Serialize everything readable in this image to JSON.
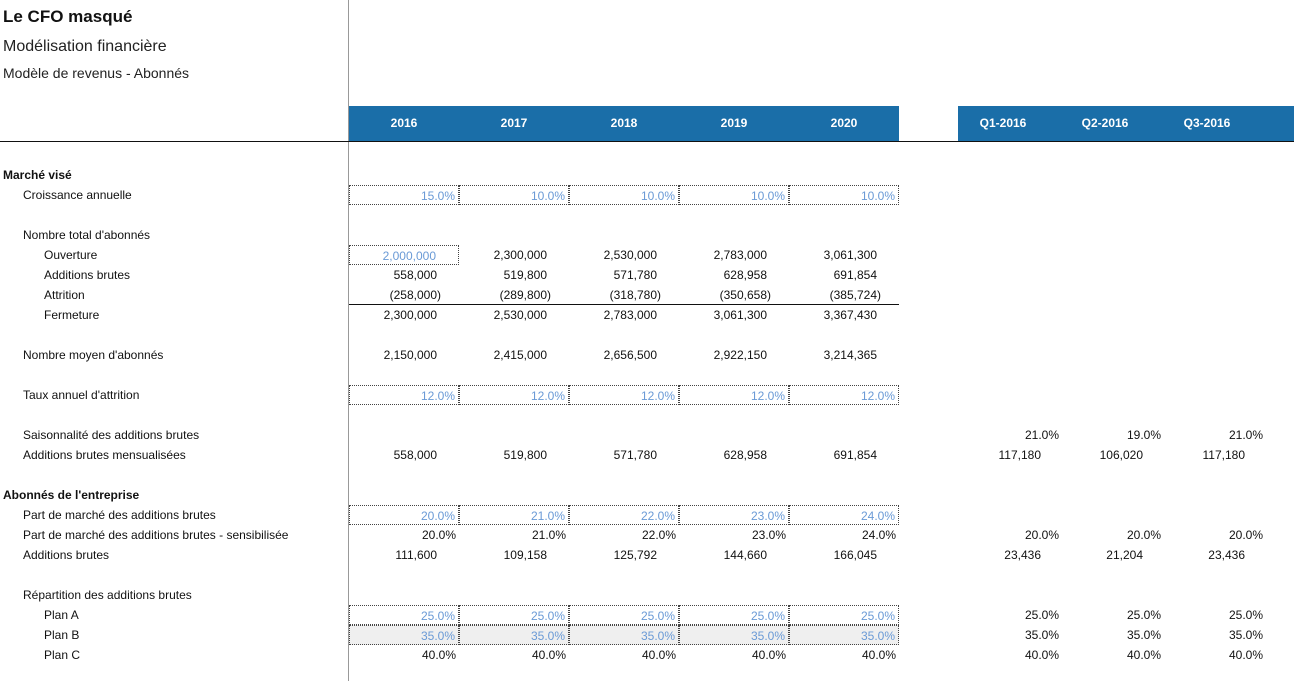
{
  "header": {
    "title": "Le CFO masqué",
    "subtitle": "Modélisation financière",
    "model": "Modèle de revenus - Abonnés"
  },
  "columns": {
    "years": [
      "2016",
      "2017",
      "2018",
      "2019",
      "2020"
    ],
    "quarters": [
      "Q1-2016",
      "Q2-2016",
      "Q3-2016"
    ]
  },
  "rows": [
    {
      "label": "Marché visé"
    },
    {
      "label": "Croissance annuelle",
      "values": [
        "15.0%",
        "10.0%",
        "10.0%",
        "10.0%",
        "10.0%"
      ]
    },
    {
      "label": "Nombre total d'abonnés"
    },
    {
      "label": "Ouverture",
      "values": [
        "2,000,000",
        "2,300,000",
        "2,530,000",
        "2,783,000",
        "3,061,300"
      ]
    },
    {
      "label": "Additions brutes",
      "values": [
        "558,000",
        "519,800",
        "571,780",
        "628,958",
        "691,854"
      ]
    },
    {
      "label": "Attrition",
      "values": [
        "(258,000)",
        "(289,800)",
        "(318,780)",
        "(350,658)",
        "(385,724)"
      ]
    },
    {
      "label": "Fermeture",
      "values": [
        "2,300,000",
        "2,530,000",
        "2,783,000",
        "3,061,300",
        "3,367,430"
      ]
    },
    {
      "label": "Nombre moyen d'abonnés",
      "values": [
        "2,150,000",
        "2,415,000",
        "2,656,500",
        "2,922,150",
        "3,214,365"
      ]
    },
    {
      "label": "Taux annuel d'attrition",
      "values": [
        "12.0%",
        "12.0%",
        "12.0%",
        "12.0%",
        "12.0%"
      ]
    },
    {
      "label": "Saisonnalité des additions brutes",
      "quarters": [
        "21.0%",
        "19.0%",
        "21.0%"
      ]
    },
    {
      "label": "Additions brutes mensualisées",
      "values": [
        "558,000",
        "519,800",
        "571,780",
        "628,958",
        "691,854"
      ],
      "quarters": [
        "117,180",
        "106,020",
        "117,180"
      ]
    },
    {
      "label": "Abonnés de l'entreprise"
    },
    {
      "label": "Part de marché des additions brutes",
      "values": [
        "20.0%",
        "21.0%",
        "22.0%",
        "23.0%",
        "24.0%"
      ]
    },
    {
      "label": "Part de marché des additions brutes - sensibilisée",
      "values": [
        "20.0%",
        "21.0%",
        "22.0%",
        "23.0%",
        "24.0%"
      ],
      "quarters": [
        "20.0%",
        "20.0%",
        "20.0%"
      ]
    },
    {
      "label": "Additions brutes",
      "values": [
        "111,600",
        "109,158",
        "125,792",
        "144,660",
        "166,045"
      ],
      "quarters": [
        "23,436",
        "21,204",
        "23,436"
      ]
    },
    {
      "label": "Répartition des additions brutes"
    },
    {
      "label": "Plan A",
      "values": [
        "25.0%",
        "25.0%",
        "25.0%",
        "25.0%",
        "25.0%"
      ],
      "quarters": [
        "25.0%",
        "25.0%",
        "25.0%"
      ]
    },
    {
      "label": "Plan B",
      "values": [
        "35.0%",
        "35.0%",
        "35.0%",
        "35.0%",
        "35.0%"
      ],
      "quarters": [
        "35.0%",
        "35.0%",
        "35.0%"
      ]
    },
    {
      "label": "Plan C",
      "values": [
        "40.0%",
        "40.0%",
        "40.0%",
        "40.0%",
        "40.0%"
      ],
      "quarters": [
        "40.0%",
        "40.0%",
        "40.0%"
      ]
    }
  ]
}
